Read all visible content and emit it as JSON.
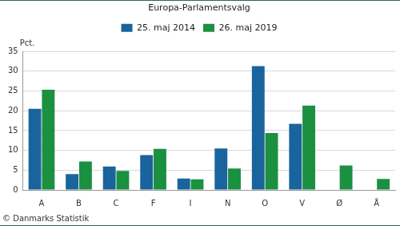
{
  "chart_data": {
    "type": "bar",
    "title": "Europa-Parlamentsvalg",
    "ylabel": "Pct.",
    "source": "© Danmarks Statistik",
    "categories": [
      "A",
      "B",
      "C",
      "F",
      "I",
      "N",
      "O",
      "V",
      "Ø",
      "Å"
    ],
    "series": [
      {
        "name": "25. maj 2014",
        "color": "#19649c",
        "values": [
          20.5,
          4.0,
          5.9,
          8.8,
          2.9,
          10.5,
          31.3,
          16.7,
          null,
          null
        ]
      },
      {
        "name": "26. maj 2019",
        "color": "#1b9040",
        "values": [
          25.3,
          7.2,
          4.8,
          10.4,
          2.7,
          5.4,
          14.4,
          21.3,
          6.2,
          2.8
        ]
      }
    ],
    "ylim": [
      0,
      35
    ],
    "yticks": [
      0,
      5,
      10,
      15,
      20,
      25,
      30,
      35
    ],
    "grid": true,
    "legend": "top"
  }
}
